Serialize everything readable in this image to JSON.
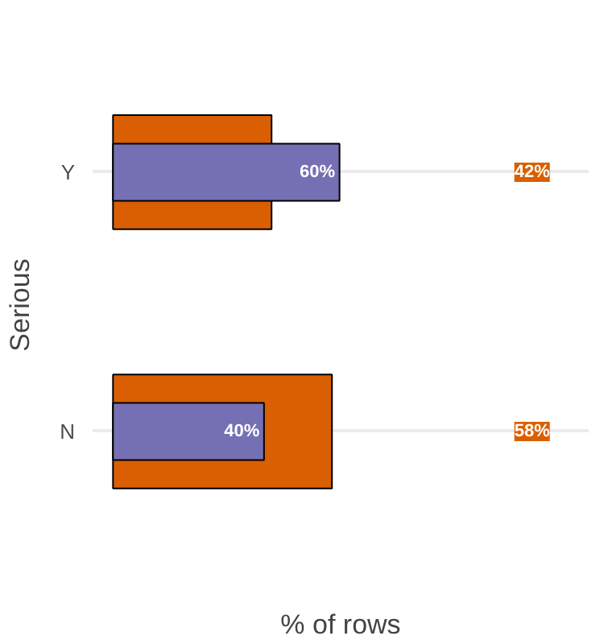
{
  "chart_data": {
    "type": "bar",
    "orientation": "horizontal",
    "xlabel": "% of rows",
    "ylabel": "Serious",
    "categories": [
      "Y",
      "N"
    ],
    "grid": "y",
    "tick_labels": "y",
    "series": [
      {
        "color": "#d95f02",
        "values": [
          42,
          58
        ],
        "value_labels": [
          "42%",
          "58%"
        ]
      },
      {
        "color": "#7570b3",
        "values": [
          60,
          40
        ],
        "value_labels": [
          "60%",
          "40%"
        ]
      }
    ]
  }
}
